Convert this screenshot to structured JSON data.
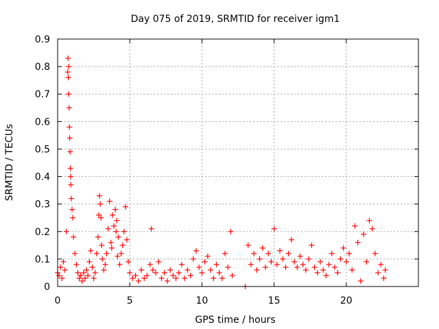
{
  "chart_data": {
    "type": "scatter",
    "title": "Day 075 of 2019, SRMTID for receiver igm1",
    "xlabel": "GPS time / hours",
    "ylabel": "SRMTID / TECUs",
    "xlim": [
      0,
      25
    ],
    "ylim": [
      0,
      0.9
    ],
    "x_ticks": [
      0,
      5,
      10,
      15,
      20
    ],
    "y_ticks": [
      0,
      0.1,
      0.2,
      0.3,
      0.4,
      0.5,
      0.6,
      0.7,
      0.8,
      0.9
    ],
    "x_tick_labels": [
      "0",
      "5",
      "10",
      "15",
      "20"
    ],
    "y_tick_labels": [
      "0",
      "0.1",
      "0.2",
      "0.3",
      "0.4",
      "0.5",
      "0.6",
      "0.7",
      "0.8",
      "0.9"
    ],
    "grid": true,
    "marker": "plus",
    "color": "#ff0000",
    "series": [
      {
        "name": "SRMTID",
        "x": [
          0.0,
          0.1,
          0.2,
          0.3,
          0.4,
          0.5,
          0.6,
          0.7,
          0.72,
          0.74,
          0.76,
          0.78,
          0.8,
          0.82,
          0.84,
          0.86,
          0.88,
          0.9,
          0.92,
          0.95,
          1.0,
          1.05,
          1.1,
          1.2,
          1.3,
          1.4,
          1.5,
          1.6,
          1.7,
          1.8,
          1.9,
          2.0,
          2.1,
          2.2,
          2.3,
          2.4,
          2.5,
          2.6,
          2.7,
          2.8,
          2.85,
          2.9,
          2.95,
          3.0,
          3.05,
          3.1,
          3.2,
          3.3,
          3.4,
          3.5,
          3.6,
          3.7,
          3.75,
          3.8,
          3.9,
          4.0,
          4.05,
          4.1,
          4.15,
          4.2,
          4.3,
          4.4,
          4.5,
          4.6,
          4.7,
          4.8,
          4.9,
          5.0,
          5.2,
          5.4,
          5.6,
          5.8,
          6.0,
          6.2,
          6.4,
          6.5,
          6.6,
          6.8,
          7.0,
          7.2,
          7.4,
          7.6,
          7.8,
          8.0,
          8.2,
          8.4,
          8.6,
          8.8,
          9.0,
          9.2,
          9.4,
          9.6,
          9.8,
          10.0,
          10.2,
          10.4,
          10.6,
          10.8,
          11.0,
          11.2,
          11.4,
          11.6,
          11.8,
          12.0,
          12.1,
          13.0,
          13.2,
          13.4,
          13.6,
          13.8,
          14.0,
          14.2,
          14.4,
          14.6,
          14.8,
          15.0,
          15.2,
          15.4,
          15.6,
          15.8,
          16.0,
          16.2,
          16.4,
          16.6,
          16.8,
          17.0,
          17.2,
          17.4,
          17.6,
          17.8,
          18.0,
          18.2,
          18.4,
          18.6,
          18.8,
          19.0,
          19.2,
          19.4,
          19.6,
          19.8,
          20.0,
          20.2,
          20.4,
          20.6,
          20.8,
          21.0,
          21.2,
          21.4,
          21.6,
          21.8,
          22.0,
          22.2,
          22.4,
          22.6,
          22.7
        ],
        "y": [
          0.05,
          0.04,
          0.07,
          0.03,
          0.09,
          0.06,
          0.2,
          0.78,
          0.83,
          0.76,
          0.7,
          0.8,
          0.65,
          0.58,
          0.54,
          0.49,
          0.43,
          0.4,
          0.37,
          0.32,
          0.28,
          0.25,
          0.18,
          0.12,
          0.08,
          0.05,
          0.03,
          0.04,
          0.02,
          0.05,
          0.03,
          0.06,
          0.04,
          0.09,
          0.13,
          0.07,
          0.03,
          0.05,
          0.12,
          0.18,
          0.26,
          0.33,
          0.3,
          0.25,
          0.15,
          0.1,
          0.06,
          0.08,
          0.12,
          0.21,
          0.31,
          0.16,
          0.14,
          0.26,
          0.22,
          0.28,
          0.2,
          0.24,
          0.11,
          0.18,
          0.08,
          0.12,
          0.15,
          0.2,
          0.29,
          0.17,
          0.09,
          0.05,
          0.03,
          0.04,
          0.02,
          0.06,
          0.03,
          0.04,
          0.08,
          0.21,
          0.06,
          0.05,
          0.09,
          0.03,
          0.05,
          0.02,
          0.06,
          0.04,
          0.03,
          0.05,
          0.08,
          0.03,
          0.06,
          0.04,
          0.1,
          0.13,
          0.07,
          0.05,
          0.09,
          0.11,
          0.06,
          0.03,
          0.08,
          0.05,
          0.03,
          0.12,
          0.07,
          0.2,
          0.04,
          0.0,
          0.15,
          0.08,
          0.12,
          0.06,
          0.1,
          0.14,
          0.07,
          0.12,
          0.09,
          0.21,
          0.08,
          0.13,
          0.1,
          0.07,
          0.12,
          0.17,
          0.09,
          0.07,
          0.11,
          0.08,
          0.06,
          0.1,
          0.15,
          0.07,
          0.05,
          0.09,
          0.06,
          0.04,
          0.08,
          0.12,
          0.07,
          0.05,
          0.1,
          0.14,
          0.09,
          0.12,
          0.06,
          0.22,
          0.16,
          0.02,
          0.19,
          0.09,
          0.24,
          0.21,
          0.12,
          0.05,
          0.08,
          0.03,
          0.06
        ]
      }
    ]
  }
}
